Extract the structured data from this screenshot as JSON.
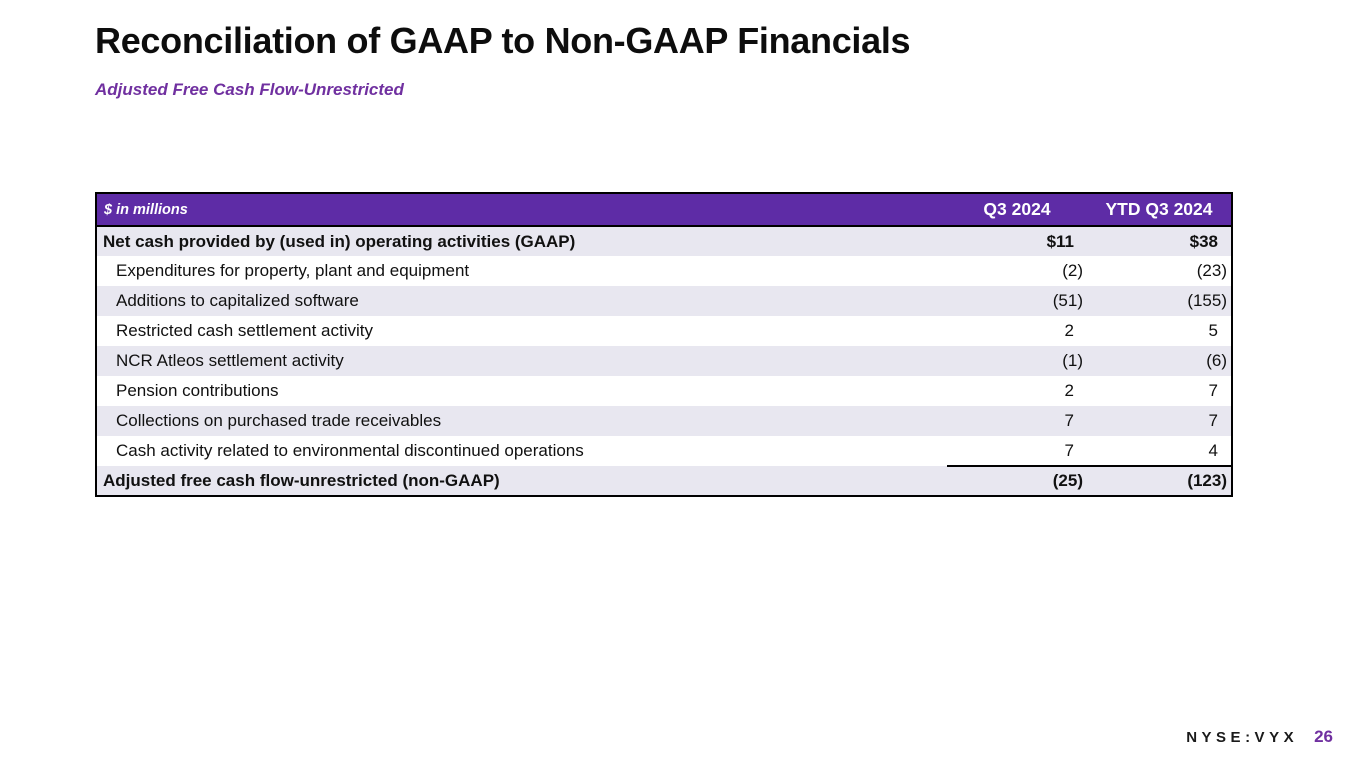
{
  "slide": {
    "title": "Reconciliation of GAAP to Non-GAAP Financials",
    "subtitle": "Adjusted Free Cash Flow-Unrestricted"
  },
  "table": {
    "unit_label": "$ in millions",
    "columns": [
      "Q3 2024",
      "YTD Q3 2024"
    ],
    "rows": [
      {
        "label": "Net cash provided by (used in) operating activities (GAAP)",
        "q3": "$11",
        "ytd": "$38"
      },
      {
        "label": "Expenditures for property, plant and equipment",
        "q3": "(2)",
        "ytd": "(23)"
      },
      {
        "label": "Additions to capitalized software",
        "q3": "(51)",
        "ytd": "(155)"
      },
      {
        "label": "Restricted cash settlement activity",
        "q3": "2",
        "ytd": "5"
      },
      {
        "label": "NCR Atleos settlement activity",
        "q3": "(1)",
        "ytd": "(6)"
      },
      {
        "label": "Pension contributions",
        "q3": "2",
        "ytd": "7"
      },
      {
        "label": "Collections on purchased trade receivables",
        "q3": "7",
        "ytd": "7"
      },
      {
        "label": "Cash activity related to environmental discontinued operations",
        "q3": "7",
        "ytd": "4"
      },
      {
        "label": "Adjusted free cash flow-unrestricted (non-GAAP)",
        "q3": "(25)",
        "ytd": "(123)"
      }
    ]
  },
  "footer": {
    "ticker": "NYSE:VYX",
    "page_number": "26"
  },
  "colors": {
    "header_purple": "#5e2ca6",
    "accent_purple": "#7030a0",
    "row_alt_lavender": "#e8e7f0",
    "table_border": "#000000"
  }
}
